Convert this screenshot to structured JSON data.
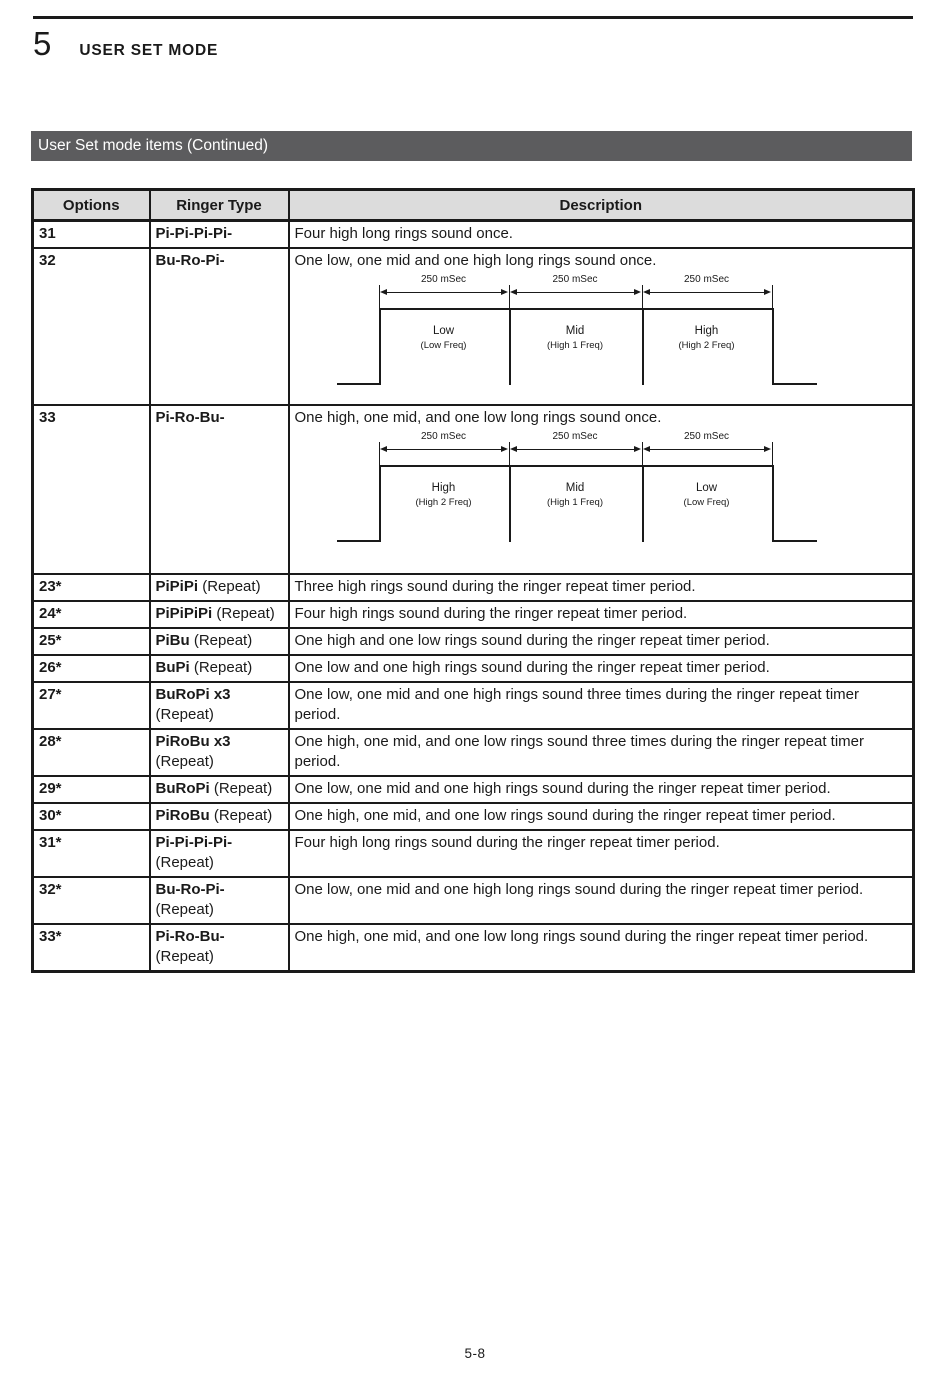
{
  "page": {
    "chapter_number": "5",
    "chapter_title": "USER SET MODE",
    "section_title": "User Set mode items (Continued)",
    "page_number": "5-8"
  },
  "colors": {
    "section_bar_bg": "#5c5c5e",
    "table_header_bg": "#dcdcdc",
    "border": "#1a1a1a",
    "page_bg": "#ffffff"
  },
  "table": {
    "headers": [
      "Options",
      "Ringer Type",
      "Description"
    ],
    "rows": [
      {
        "option": "31",
        "ringer": {
          "bold": "Pi-Pi-Pi-Pi-",
          "normal": "",
          "line2": ""
        },
        "description": "Four high long rings sound once.",
        "diagram": null
      },
      {
        "option": "32",
        "ringer": {
          "bold": "Bu-Ro-Pi-",
          "normal": "",
          "line2": ""
        },
        "description": "One low, one mid and one high long rings sound once.",
        "diagram": 0
      },
      {
        "option": "33",
        "ringer": {
          "bold": "Pi-Ro-Bu-",
          "normal": "",
          "line2": ""
        },
        "description": "One high, one mid, and one low long rings sound once.",
        "diagram": 1
      },
      {
        "option": "23*",
        "ringer": {
          "bold": "PiPiPi",
          "normal": " (Repeat)",
          "line2": ""
        },
        "description": "Three high rings sound during the ringer repeat timer period.",
        "diagram": null
      },
      {
        "option": "24*",
        "ringer": {
          "bold": "PiPiPiPi",
          "normal": " (Repeat)",
          "line2": ""
        },
        "description": "Four high rings sound during the ringer repeat timer period.",
        "diagram": null
      },
      {
        "option": "25*",
        "ringer": {
          "bold": "PiBu",
          "normal": " (Repeat)",
          "line2": ""
        },
        "description": "One high and one low rings sound during the ringer repeat timer period.",
        "diagram": null
      },
      {
        "option": "26*",
        "ringer": {
          "bold": "BuPi",
          "normal": " (Repeat)",
          "line2": ""
        },
        "description": "One low and one high rings sound during the ringer repeat timer period.",
        "diagram": null
      },
      {
        "option": "27*",
        "ringer": {
          "bold": "BuRoPi x3",
          "normal": "",
          "line2": "(Repeat)"
        },
        "description": "One low, one mid and one high rings sound three times during the ringer repeat timer period.",
        "diagram": null
      },
      {
        "option": "28*",
        "ringer": {
          "bold": "PiRoBu x3",
          "normal": "",
          "line2": "(Repeat)"
        },
        "description": "One high, one mid, and one low rings sound three times during the ringer repeat timer period.",
        "diagram": null
      },
      {
        "option": "29*",
        "ringer": {
          "bold": "BuRoPi",
          "normal": " (Repeat)",
          "line2": ""
        },
        "description": "One low, one mid and one high rings sound during the ringer repeat timer period.",
        "diagram": null
      },
      {
        "option": "30*",
        "ringer": {
          "bold": "PiRoBu",
          "normal": " (Repeat)",
          "line2": ""
        },
        "description": "One high, one mid, and one low rings sound during the ringer repeat timer period.",
        "diagram": null
      },
      {
        "option": "31*",
        "ringer": {
          "bold": "Pi-Pi-Pi-Pi-",
          "normal": "",
          "line2": "(Repeat)"
        },
        "description": "Four high long rings sound during the ringer repeat timer period.",
        "diagram": null
      },
      {
        "option": "32*",
        "ringer": {
          "bold": "Bu-Ro-Pi-",
          "normal": "",
          "line2": "(Repeat)"
        },
        "description": "One low, one mid and one high long rings sound during the ringer repeat timer period.",
        "diagram": null
      },
      {
        "option": "33*",
        "ringer": {
          "bold": "Pi-Ro-Bu-",
          "normal": "",
          "line2": "(Repeat)"
        },
        "description": "One high, one mid, and one low long rings sound during the ringer repeat timer period.",
        "diagram": null
      }
    ]
  },
  "diagrams": [
    {
      "segments": [
        {
          "duration": "250 mSec",
          "name": "Low",
          "freq": "(Low Freq)"
        },
        {
          "duration": "250 mSec",
          "name": "Mid",
          "freq": "(High 1 Freq)"
        },
        {
          "duration": "250 mSec",
          "name": "High",
          "freq": "(High 2 Freq)"
        }
      ]
    },
    {
      "segments": [
        {
          "duration": "250 mSec",
          "name": "High",
          "freq": "(High 2 Freq)"
        },
        {
          "duration": "250 mSec",
          "name": "Mid",
          "freq": "(High 1 Freq)"
        },
        {
          "duration": "250 mSec",
          "name": "Low",
          "freq": "(Low Freq)"
        }
      ]
    }
  ]
}
